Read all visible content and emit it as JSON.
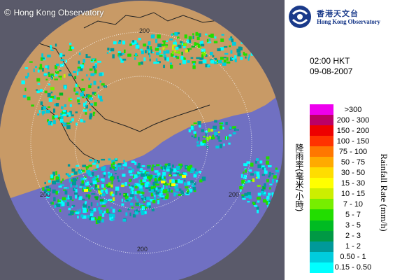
{
  "copyright": {
    "symbol": "©",
    "text": "Hong Kong Observatory"
  },
  "logo": {
    "chinese": "香港天文台",
    "english": "Hong Kong Observatory"
  },
  "timestamp": {
    "time": "02:00 HKT",
    "date": "09-08-2007"
  },
  "range_rings": {
    "ring_label": "200"
  },
  "legend": {
    "title_chinese": "降雨率(毫米/小時)",
    "title_english": "Rainfall Rate (mm/h)",
    "items": [
      {
        "label": ">300",
        "color": "#ee00ee"
      },
      {
        "label": "200 - 300",
        "color": "#bb0066"
      },
      {
        "label": "150 - 200",
        "color": "#ee0000"
      },
      {
        "label": "100 - 150",
        "color": "#ff3300"
      },
      {
        "label": "75 - 100",
        "color": "#ff7700"
      },
      {
        "label": "50 - 75",
        "color": "#ffaa00"
      },
      {
        "label": "30 - 50",
        "color": "#ffdd00"
      },
      {
        "label": "15 - 30",
        "color": "#ffff00"
      },
      {
        "label": "10 - 15",
        "color": "#ccee00"
      },
      {
        "label": "7 - 10",
        "color": "#77ee00"
      },
      {
        "label": "5 - 7",
        "color": "#22dd00"
      },
      {
        "label": "3 - 5",
        "color": "#00bb22"
      },
      {
        "label": "2 - 3",
        "color": "#009944"
      },
      {
        "label": "1 - 2",
        "color": "#009999"
      },
      {
        "label": "0.50 - 1",
        "color": "#00ccdd"
      },
      {
        "label": "0.15 - 0.50",
        "color": "#00ffff"
      }
    ]
  },
  "colors": {
    "sea": "#7070c2",
    "land": "#c89a66",
    "outer": "#5a5a6a",
    "ring": "#ffffff"
  }
}
